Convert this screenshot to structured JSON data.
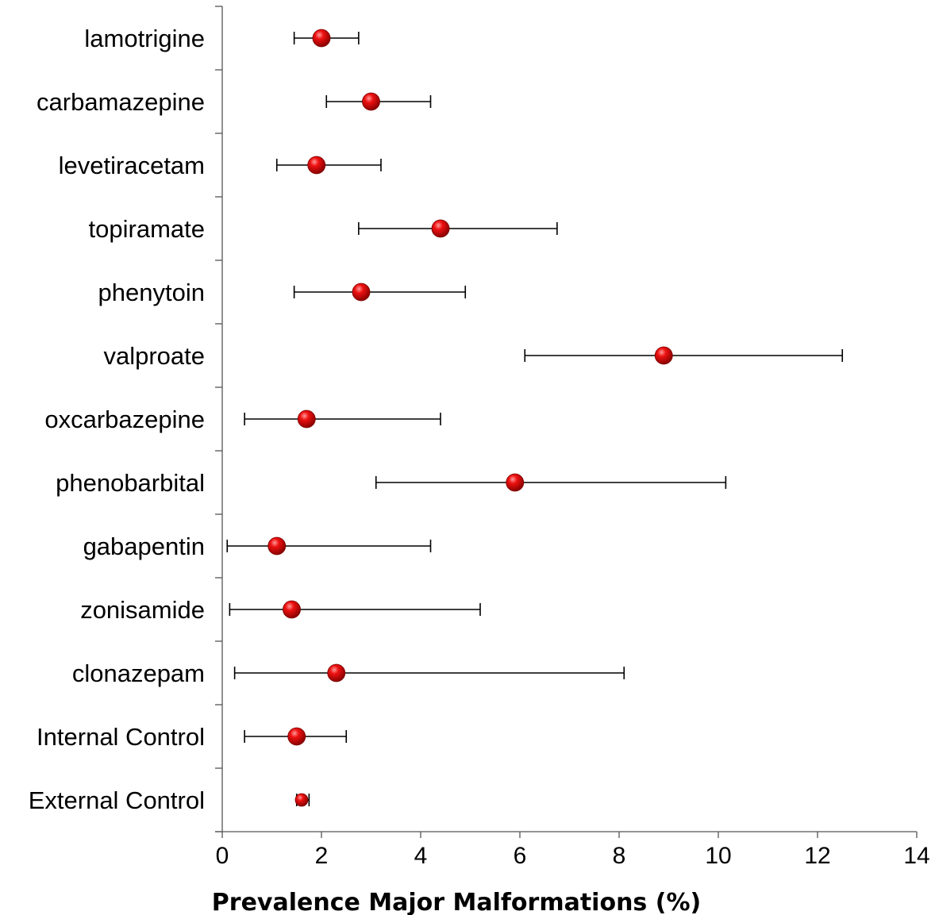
{
  "chart_data": {
    "type": "scatter",
    "orientation": "horizontal",
    "xlabel": "Prevalence Major Malformations (%)",
    "xlim": [
      0,
      14
    ],
    "xticks": [
      "0",
      "2",
      "4",
      "6",
      "8",
      "10",
      "12",
      "14"
    ],
    "grid": false,
    "marker_color": "#e00000",
    "error_bar_color": "#000000",
    "categories": [
      "lamotrigine",
      "carbamazepine",
      "levetiracetam",
      "topiramate",
      "phenytoin",
      "valproate",
      "oxcarbazepine",
      "phenobarbital",
      "gabapentin",
      "zonisamide",
      "clonazepam",
      "Internal Control",
      "External Control"
    ],
    "values": [
      2.0,
      3.0,
      1.9,
      4.4,
      2.8,
      8.9,
      1.7,
      5.9,
      1.1,
      1.4,
      2.3,
      1.5,
      1.6
    ],
    "ci_low": [
      1.45,
      2.1,
      1.1,
      2.75,
      1.45,
      6.1,
      0.45,
      3.1,
      0.1,
      0.15,
      0.25,
      0.45,
      1.5
    ],
    "ci_high": [
      2.75,
      4.2,
      3.2,
      6.75,
      4.9,
      12.5,
      4.4,
      10.15,
      4.2,
      5.2,
      8.1,
      2.5,
      1.75
    ]
  }
}
